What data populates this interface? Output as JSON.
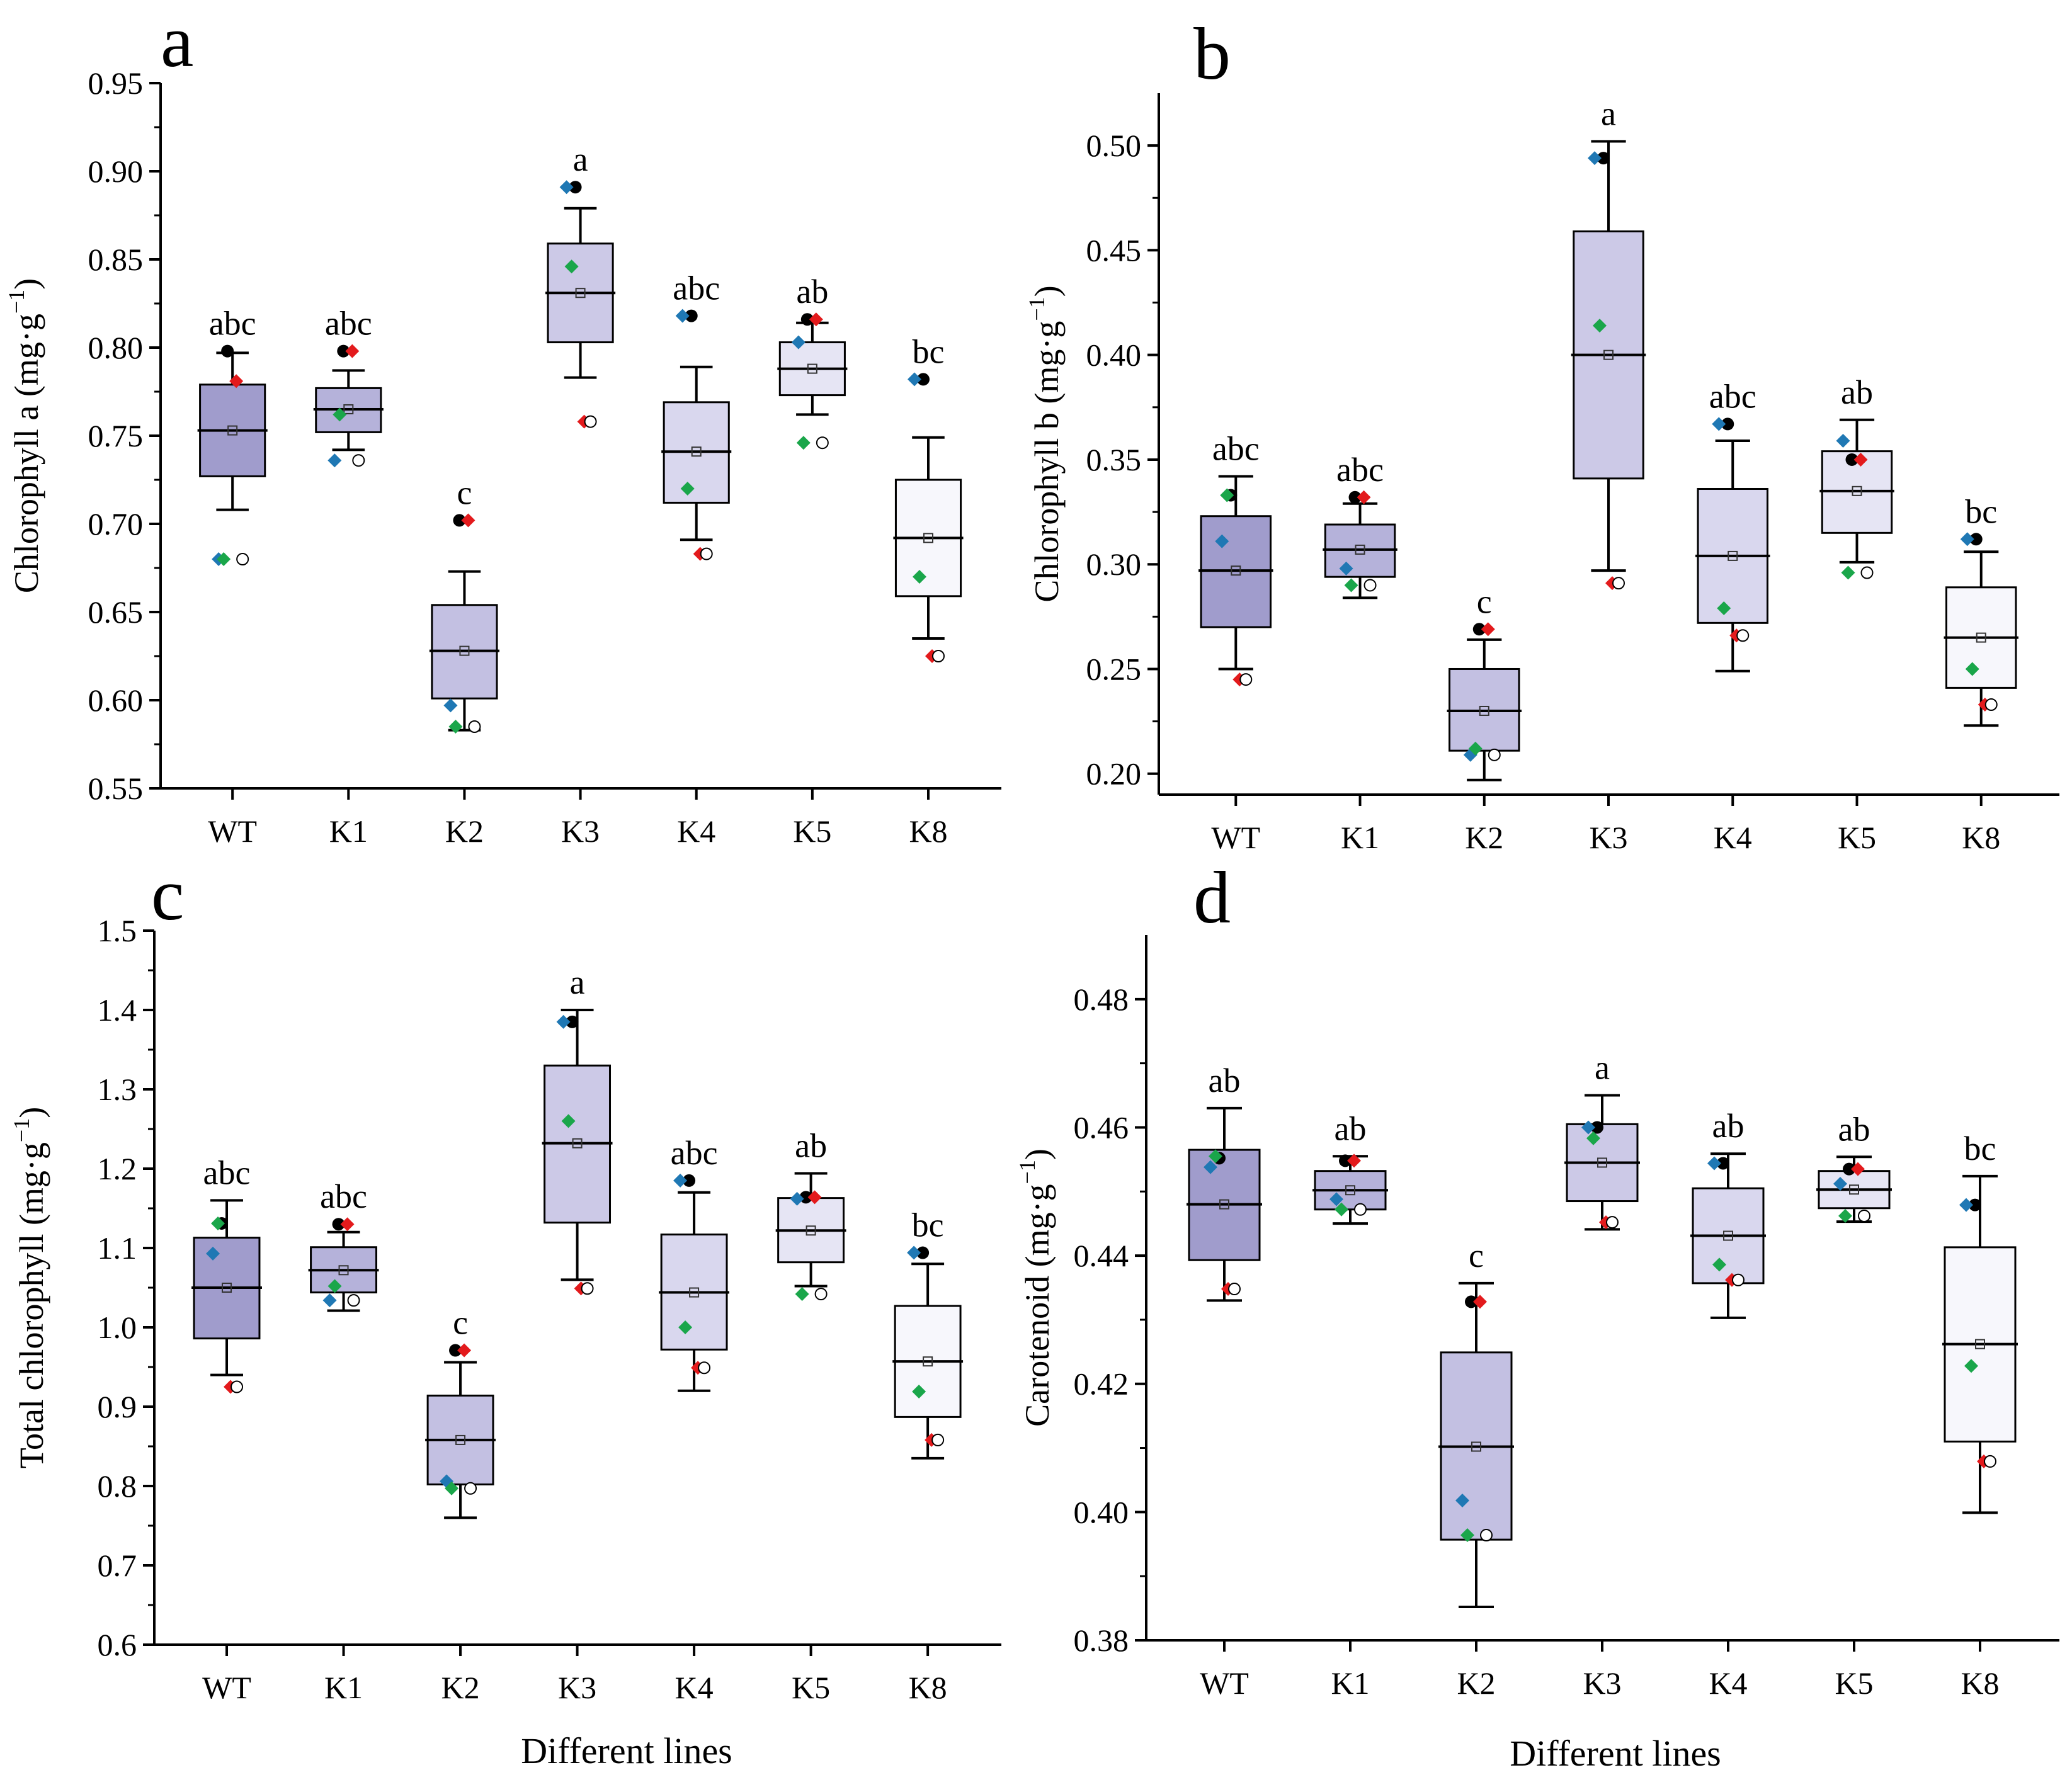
{
  "figure": {
    "xlabel": "Different lines",
    "colors": {
      "box_shades": [
        "#a09ccc",
        "#b5b2da",
        "#c3c0e2",
        "#ccc9e7",
        "#d9d7ee",
        "#e6e5f4",
        "#f7f7fc"
      ],
      "points": [
        "#000000",
        "#e31a1c",
        "#1f78b4",
        "#1aa64a"
      ]
    }
  },
  "chart_data": [
    {
      "type": "box",
      "letter": "a",
      "ylabel_main": "Chlorophyll a (mg·g",
      "ylabel_sup": "−1",
      "ylabel_end": ")",
      "ylim": [
        0.55,
        0.95
      ],
      "yticks": [
        "0.55",
        "0.60",
        "0.65",
        "0.70",
        "0.75",
        "0.80",
        "0.85",
        "0.90",
        "0.95"
      ],
      "categories": [
        "WT",
        "K1",
        "K2",
        "K3",
        "K4",
        "K5",
        "K8"
      ],
      "boxes": [
        {
          "q1": 0.727,
          "median": 0.753,
          "q3": 0.779,
          "low": 0.708,
          "high": 0.797,
          "mean": 0.753,
          "sig": "abc",
          "points": [
            0.798,
            0.781,
            0.68,
            0.68
          ]
        },
        {
          "q1": 0.752,
          "median": 0.765,
          "q3": 0.777,
          "low": 0.742,
          "high": 0.787,
          "mean": 0.765,
          "sig": "abc",
          "points": [
            0.798,
            0.798,
            0.736,
            0.762
          ]
        },
        {
          "q1": 0.601,
          "median": 0.628,
          "q3": 0.654,
          "low": 0.583,
          "high": 0.673,
          "mean": 0.628,
          "sig": "c",
          "points": [
            0.702,
            0.702,
            0.597,
            0.585
          ]
        },
        {
          "q1": 0.803,
          "median": 0.831,
          "q3": 0.859,
          "low": 0.783,
          "high": 0.879,
          "mean": 0.831,
          "sig": "a",
          "points": [
            0.891,
            0.758,
            0.891,
            0.846
          ]
        },
        {
          "q1": 0.712,
          "median": 0.741,
          "q3": 0.769,
          "low": 0.691,
          "high": 0.789,
          "mean": 0.741,
          "sig": "abc",
          "points": [
            0.818,
            0.683,
            0.818,
            0.72
          ]
        },
        {
          "q1": 0.773,
          "median": 0.788,
          "q3": 0.803,
          "low": 0.762,
          "high": 0.814,
          "mean": 0.788,
          "sig": "ab",
          "points": [
            0.816,
            0.816,
            0.803,
            0.746
          ]
        },
        {
          "q1": 0.659,
          "median": 0.692,
          "q3": 0.725,
          "low": 0.635,
          "high": 0.749,
          "mean": 0.692,
          "sig": "bc",
          "points": [
            0.782,
            0.625,
            0.782,
            0.67
          ]
        }
      ]
    },
    {
      "type": "box",
      "letter": "b",
      "ylabel_main": "Chlorophyll b (mg·g",
      "ylabel_sup": "−1",
      "ylabel_end": ")",
      "ylim": [
        0.19,
        0.525
      ],
      "yticks": [
        "0.20",
        "0.25",
        "0.30",
        "0.35",
        "0.40",
        "0.45",
        "0.50"
      ],
      "categories": [
        "WT",
        "K1",
        "K2",
        "K3",
        "K4",
        "K5",
        "K8"
      ],
      "boxes": [
        {
          "q1": 0.27,
          "median": 0.297,
          "q3": 0.323,
          "low": 0.25,
          "high": 0.342,
          "mean": 0.297,
          "sig": "abc",
          "points": [
            0.333,
            0.245,
            0.311,
            0.333
          ]
        },
        {
          "q1": 0.294,
          "median": 0.307,
          "q3": 0.319,
          "low": 0.284,
          "high": 0.329,
          "mean": 0.307,
          "sig": "abc",
          "points": [
            0.332,
            0.332,
            0.298,
            0.29
          ]
        },
        {
          "q1": 0.211,
          "median": 0.23,
          "q3": 0.25,
          "low": 0.197,
          "high": 0.264,
          "mean": 0.23,
          "sig": "c",
          "points": [
            0.269,
            0.269,
            0.209,
            0.212
          ]
        },
        {
          "q1": 0.341,
          "median": 0.4,
          "q3": 0.459,
          "low": 0.297,
          "high": 0.502,
          "mean": 0.4,
          "sig": "a",
          "points": [
            0.494,
            0.291,
            0.494,
            0.414
          ]
        },
        {
          "q1": 0.272,
          "median": 0.304,
          "q3": 0.336,
          "low": 0.249,
          "high": 0.359,
          "mean": 0.304,
          "sig": "abc",
          "points": [
            0.367,
            0.266,
            0.367,
            0.279
          ]
        },
        {
          "q1": 0.315,
          "median": 0.335,
          "q3": 0.354,
          "low": 0.301,
          "high": 0.369,
          "mean": 0.335,
          "sig": "ab",
          "points": [
            0.35,
            0.35,
            0.359,
            0.296
          ]
        },
        {
          "q1": 0.241,
          "median": 0.265,
          "q3": 0.289,
          "low": 0.223,
          "high": 0.306,
          "mean": 0.265,
          "sig": "bc",
          "points": [
            0.312,
            0.233,
            0.312,
            0.25
          ]
        }
      ]
    },
    {
      "type": "box",
      "letter": "c",
      "ylabel_main": "Total chlorophyll (mg·g",
      "ylabel_sup": "−1",
      "ylabel_end": ")",
      "ylim": [
        0.6,
        1.5
      ],
      "yticks": [
        "0.6",
        "0.7",
        "0.8",
        "0.9",
        "1.0",
        "1.1",
        "1.2",
        "1.3",
        "1.4",
        "1.5"
      ],
      "categories": [
        "WT",
        "K1",
        "K2",
        "K3",
        "K4",
        "K5",
        "K8"
      ],
      "boxes": [
        {
          "q1": 0.986,
          "median": 1.05,
          "q3": 1.113,
          "low": 0.94,
          "high": 1.16,
          "mean": 1.05,
          "sig": "abc",
          "points": [
            1.131,
            0.925,
            1.093,
            1.131
          ]
        },
        {
          "q1": 1.044,
          "median": 1.072,
          "q3": 1.101,
          "low": 1.021,
          "high": 1.12,
          "mean": 1.072,
          "sig": "abc",
          "points": [
            1.13,
            1.13,
            1.034,
            1.052
          ]
        },
        {
          "q1": 0.802,
          "median": 0.858,
          "q3": 0.914,
          "low": 0.76,
          "high": 0.956,
          "mean": 0.858,
          "sig": "c",
          "points": [
            0.971,
            0.971,
            0.806,
            0.797
          ]
        },
        {
          "q1": 1.132,
          "median": 1.232,
          "q3": 1.33,
          "low": 1.06,
          "high": 1.4,
          "mean": 1.232,
          "sig": "a",
          "points": [
            1.385,
            1.049,
            1.385,
            1.26
          ]
        },
        {
          "q1": 0.972,
          "median": 1.044,
          "q3": 1.117,
          "low": 0.92,
          "high": 1.17,
          "mean": 1.044,
          "sig": "abc",
          "points": [
            1.185,
            0.949,
            1.185,
            1.0
          ]
        },
        {
          "q1": 1.082,
          "median": 1.122,
          "q3": 1.163,
          "low": 1.052,
          "high": 1.194,
          "mean": 1.122,
          "sig": "ab",
          "points": [
            1.164,
            1.164,
            1.162,
            1.042
          ]
        },
        {
          "q1": 0.887,
          "median": 0.957,
          "q3": 1.027,
          "low": 0.835,
          "high": 1.08,
          "mean": 0.957,
          "sig": "bc",
          "points": [
            1.094,
            0.858,
            1.094,
            0.919
          ]
        }
      ]
    },
    {
      "type": "box",
      "letter": "d",
      "ylabel_main": "Carotenoid (mg·g",
      "ylabel_sup": "−1",
      "ylabel_end": ")",
      "ylim": [
        0.38,
        0.49
      ],
      "yticks": [
        "0.38",
        "0.40",
        "0.42",
        "0.44",
        "0.46",
        "0.48"
      ],
      "categories": [
        "WT",
        "K1",
        "K2",
        "K3",
        "K4",
        "K5",
        "K8"
      ],
      "boxes": [
        {
          "q1": 0.4393,
          "median": 0.448,
          "q3": 0.4565,
          "low": 0.433,
          "high": 0.463,
          "mean": 0.448,
          "sig": "ab",
          "points": [
            0.4552,
            0.4348,
            0.4538,
            0.4555
          ]
        },
        {
          "q1": 0.4472,
          "median": 0.4502,
          "q3": 0.4532,
          "low": 0.445,
          "high": 0.4555,
          "mean": 0.4502,
          "sig": "ab",
          "points": [
            0.4548,
            0.4548,
            0.4488,
            0.4472
          ]
        },
        {
          "q1": 0.3957,
          "median": 0.4102,
          "q3": 0.4249,
          "low": 0.3852,
          "high": 0.4357,
          "mean": 0.4102,
          "sig": "c",
          "points": [
            0.4328,
            0.4328,
            0.4018,
            0.3964
          ]
        },
        {
          "q1": 0.4485,
          "median": 0.4545,
          "q3": 0.4605,
          "low": 0.4441,
          "high": 0.465,
          "mean": 0.4545,
          "sig": "a",
          "points": [
            0.46,
            0.4452,
            0.46,
            0.4583
          ]
        },
        {
          "q1": 0.4357,
          "median": 0.4431,
          "q3": 0.4505,
          "low": 0.4303,
          "high": 0.4559,
          "mean": 0.4431,
          "sig": "ab",
          "points": [
            0.4544,
            0.4362,
            0.4544,
            0.4386
          ]
        },
        {
          "q1": 0.4474,
          "median": 0.4503,
          "q3": 0.4532,
          "low": 0.4453,
          "high": 0.4554,
          "mean": 0.4503,
          "sig": "ab",
          "points": [
            0.4535,
            0.4535,
            0.4512,
            0.4462
          ]
        },
        {
          "q1": 0.411,
          "median": 0.4262,
          "q3": 0.4413,
          "low": 0.3999,
          "high": 0.4524,
          "mean": 0.4262,
          "sig": "bc",
          "points": [
            0.4479,
            0.4079,
            0.4479,
            0.4228
          ]
        }
      ]
    }
  ]
}
